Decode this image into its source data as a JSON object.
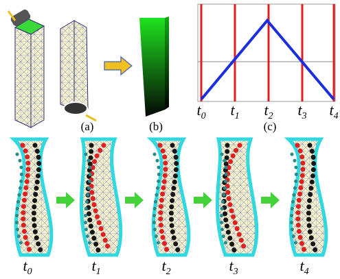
{
  "panels": {
    "a": "(a)",
    "b": "(b)",
    "c": "(c)"
  },
  "plot_time_labels": [
    {
      "base": "t",
      "sub": "0"
    },
    {
      "base": "t",
      "sub": "1"
    },
    {
      "base": "t",
      "sub": "2"
    },
    {
      "base": "t",
      "sub": "3"
    },
    {
      "base": "t",
      "sub": "4"
    }
  ],
  "sequence_time_labels": [
    {
      "base": "t",
      "sub": "0"
    },
    {
      "base": "t",
      "sub": "1"
    },
    {
      "base": "t",
      "sub": "2"
    },
    {
      "base": "t",
      "sub": "3"
    },
    {
      "base": "t",
      "sub": "4"
    }
  ]
}
